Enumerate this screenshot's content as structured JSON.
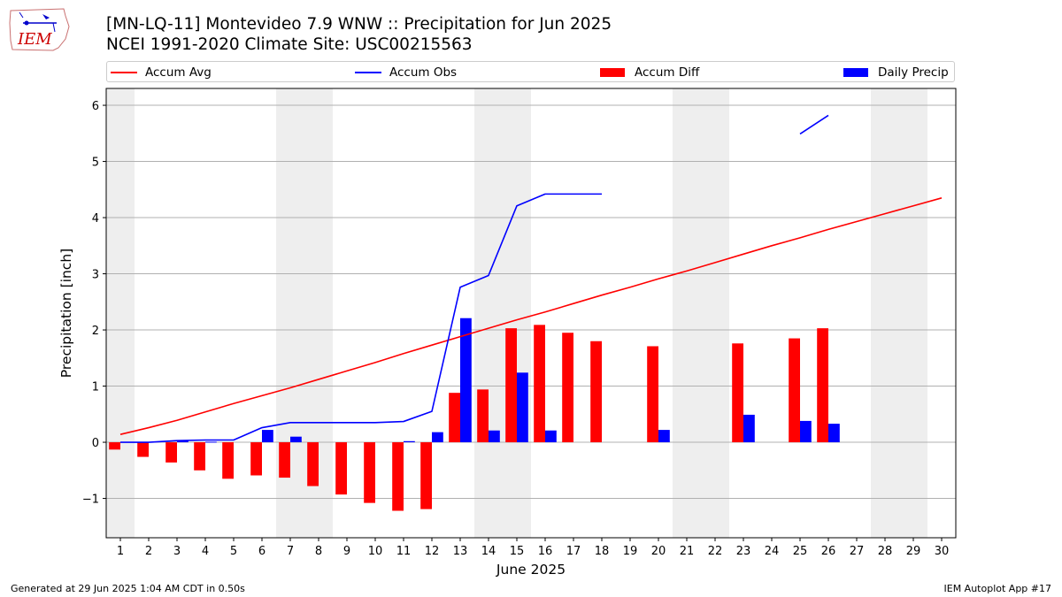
{
  "header": {
    "title": "[MN-LQ-11] Montevideo 7.9 WNW :: Precipitation for Jun 2025",
    "subtitle": "NCEI 1991-2020 Climate Site: USC00215563",
    "logo_text": "IEM"
  },
  "footer": {
    "generated": "Generated at 29 Jun 2025 1:04 AM CDT in 0.50s",
    "app": "IEM Autoplot App #17"
  },
  "colors": {
    "accum_avg": "#ff0000",
    "accum_obs": "#0000ff",
    "accum_diff": "#ff0000",
    "daily_precip": "#0000ff",
    "weekend_shade": "#eeeeee",
    "grid": "#b0b0b0"
  },
  "chart_data": {
    "type": "bar",
    "xlabel": "June 2025",
    "ylabel": "Precipitation [inch]",
    "xlim": [
      0.5,
      30.5
    ],
    "ylim": [
      -1.7,
      6.3
    ],
    "yticks": [
      -1,
      0,
      1,
      2,
      3,
      4,
      5,
      6
    ],
    "grid": true,
    "legend_position": "top",
    "days": [
      1,
      2,
      3,
      4,
      5,
      6,
      7,
      8,
      9,
      10,
      11,
      12,
      13,
      14,
      15,
      16,
      17,
      18,
      19,
      20,
      21,
      22,
      23,
      24,
      25,
      26,
      27,
      28,
      29,
      30
    ],
    "weekend_days": [
      1,
      7,
      8,
      14,
      15,
      21,
      22,
      28,
      29
    ],
    "series": [
      {
        "name": "Accum Avg",
        "kind": "line",
        "values": [
          0.14,
          0.26,
          0.39,
          0.54,
          0.69,
          0.83,
          0.97,
          1.12,
          1.27,
          1.42,
          1.58,
          1.73,
          1.88,
          2.03,
          2.18,
          2.32,
          2.47,
          2.62,
          2.76,
          2.91,
          3.05,
          3.2,
          3.35,
          3.5,
          3.64,
          3.79,
          3.93,
          4.07,
          4.21,
          4.35
        ]
      },
      {
        "name": "Accum Obs",
        "kind": "line",
        "values": [
          0.0,
          0.0,
          0.03,
          0.04,
          0.04,
          0.26,
          0.35,
          0.35,
          0.35,
          0.35,
          0.37,
          0.55,
          2.76,
          2.97,
          4.21,
          4.42,
          4.42,
          4.42,
          null,
          null,
          null,
          null,
          null,
          null,
          5.49,
          5.82,
          null,
          null,
          null,
          null
        ]
      },
      {
        "name": "Accum Diff",
        "kind": "bar",
        "values": [
          -0.13,
          -0.26,
          -0.36,
          -0.5,
          -0.65,
          -0.59,
          -0.63,
          -0.78,
          -0.93,
          -1.08,
          -1.22,
          -1.19,
          0.88,
          0.94,
          2.03,
          2.09,
          1.95,
          1.8,
          null,
          1.71,
          null,
          null,
          1.76,
          null,
          1.85,
          2.03,
          null,
          null,
          null,
          null
        ]
      },
      {
        "name": "Daily Precip",
        "kind": "bar",
        "values": [
          0.0,
          0.0,
          0.03,
          0.01,
          0.0,
          0.22,
          0.1,
          0.0,
          0.0,
          0.0,
          0.02,
          0.18,
          2.21,
          0.21,
          1.24,
          0.21,
          0.0,
          0.0,
          null,
          0.22,
          null,
          null,
          0.49,
          null,
          0.38,
          0.33,
          null,
          null,
          null,
          null
        ]
      }
    ]
  }
}
